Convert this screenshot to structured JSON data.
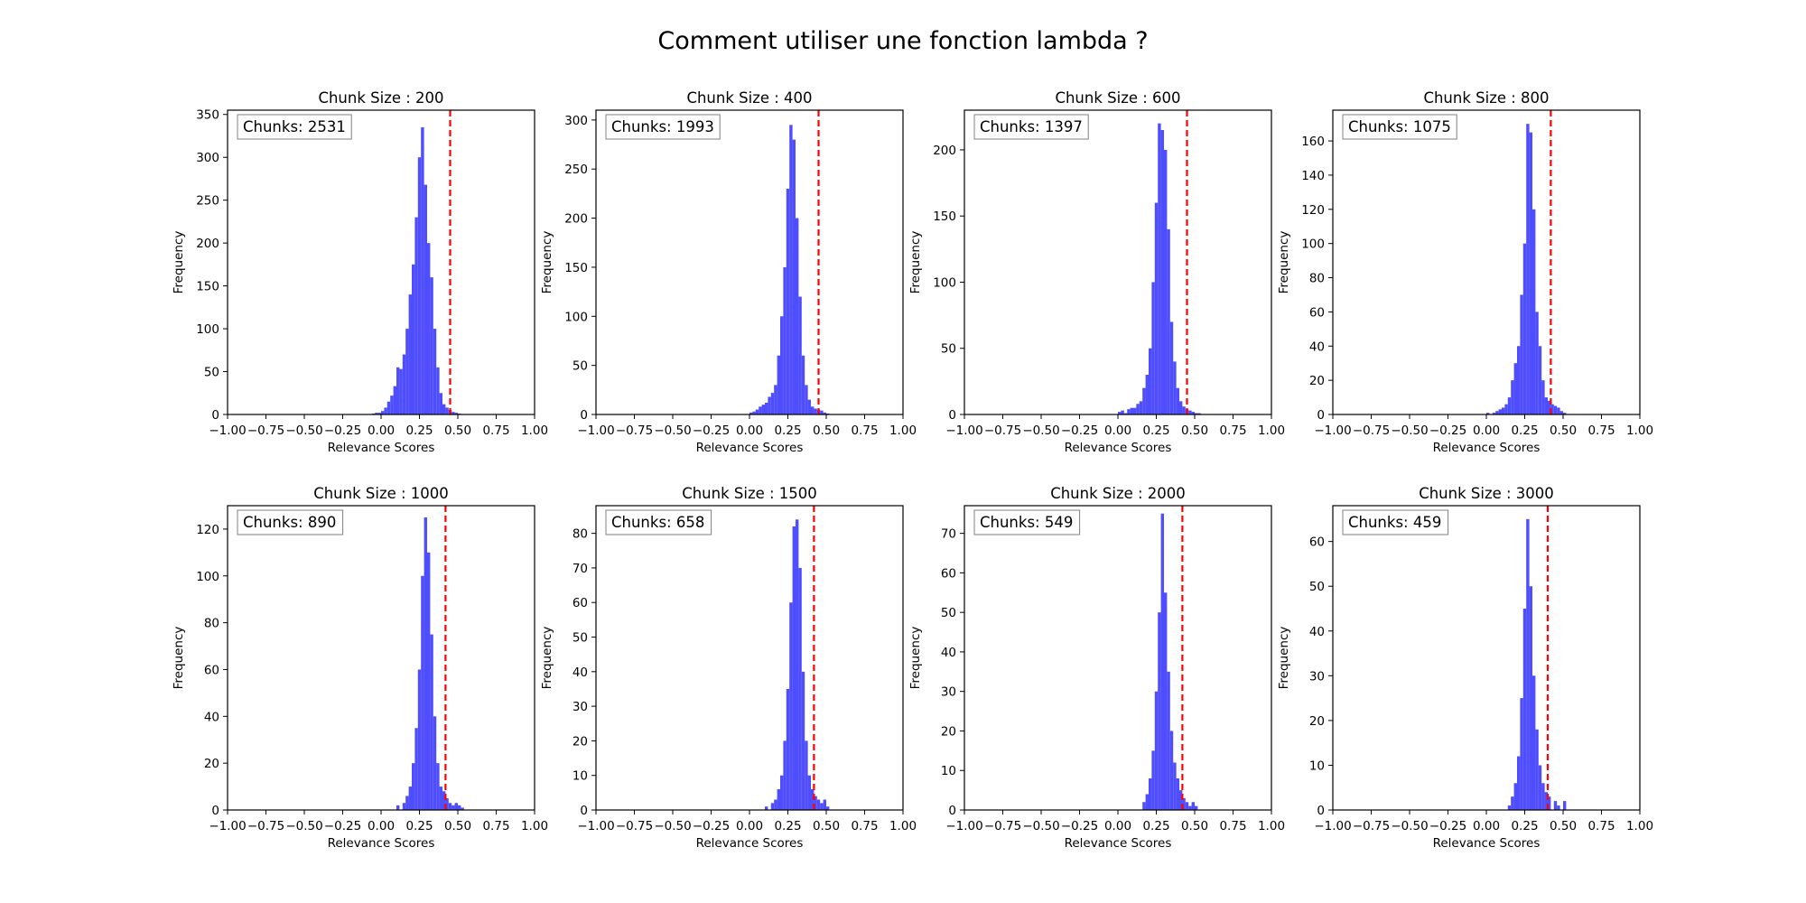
{
  "figure": {
    "title": "Comment utiliser une fonction lambda ?"
  },
  "style": {
    "bar_color": "#4444ff",
    "threshold_color": "#ff0000"
  },
  "chart_data": [
    {
      "type": "bar",
      "title": "Chunk Size : 200",
      "xlabel": "Relevance Scores",
      "ylabel": "Frequency",
      "annotation": "Chunks: 2531",
      "xlim": [
        -1.0,
        1.0
      ],
      "ylim": [
        0,
        355
      ],
      "xticks": [
        "−1.00",
        "−0.75",
        "−0.50",
        "−0.25",
        "0.00",
        "0.25",
        "0.50",
        "0.75",
        "1.00"
      ],
      "yticks": [
        0,
        50,
        100,
        150,
        200,
        250,
        300,
        350
      ],
      "threshold": 0.45,
      "bins": [
        -0.06,
        -0.04,
        -0.02,
        0.0,
        0.02,
        0.04,
        0.06,
        0.08,
        0.1,
        0.12,
        0.14,
        0.16,
        0.18,
        0.2,
        0.22,
        0.24,
        0.26,
        0.28,
        0.3,
        0.32,
        0.34,
        0.36,
        0.38,
        0.4,
        0.42,
        0.44,
        0.46,
        0.48,
        0.5
      ],
      "values": [
        1,
        2,
        2,
        4,
        8,
        15,
        22,
        33,
        55,
        53,
        70,
        100,
        140,
        175,
        230,
        300,
        335,
        268,
        200,
        160,
        100,
        55,
        25,
        12,
        8,
        5,
        3,
        2,
        1
      ]
    },
    {
      "type": "bar",
      "title": "Chunk Size : 400",
      "xlabel": "Relevance Scores",
      "ylabel": "Frequency",
      "annotation": "Chunks: 1993",
      "xlim": [
        -1.0,
        1.0
      ],
      "ylim": [
        0,
        310
      ],
      "xticks": [
        "−1.00",
        "−0.75",
        "−0.50",
        "−0.25",
        "0.00",
        "0.25",
        "0.50",
        "0.75",
        "1.00"
      ],
      "yticks": [
        0,
        50,
        100,
        150,
        200,
        250,
        300
      ],
      "threshold": 0.45,
      "bins": [
        0.0,
        0.02,
        0.04,
        0.06,
        0.08,
        0.1,
        0.12,
        0.14,
        0.16,
        0.18,
        0.2,
        0.22,
        0.24,
        0.26,
        0.28,
        0.3,
        0.32,
        0.34,
        0.36,
        0.38,
        0.4,
        0.42,
        0.44,
        0.46,
        0.48,
        0.5
      ],
      "values": [
        2,
        3,
        5,
        8,
        10,
        12,
        18,
        22,
        30,
        60,
        100,
        150,
        230,
        295,
        280,
        200,
        120,
        60,
        30,
        15,
        8,
        6,
        5,
        4,
        2,
        1
      ]
    },
    {
      "type": "bar",
      "title": "Chunk Size : 600",
      "xlabel": "Relevance Scores",
      "ylabel": "Frequency",
      "annotation": "Chunks: 1397",
      "xlim": [
        -1.0,
        1.0
      ],
      "ylim": [
        0,
        230
      ],
      "xticks": [
        "−1.00",
        "−0.75",
        "−0.50",
        "−0.25",
        "0.00",
        "0.25",
        "0.50",
        "0.75",
        "1.00"
      ],
      "yticks": [
        0,
        50,
        100,
        150,
        200
      ],
      "threshold": 0.45,
      "bins": [
        0.0,
        0.02,
        0.04,
        0.06,
        0.08,
        0.1,
        0.12,
        0.14,
        0.16,
        0.18,
        0.2,
        0.22,
        0.24,
        0.26,
        0.28,
        0.3,
        0.32,
        0.34,
        0.36,
        0.38,
        0.4,
        0.42,
        0.44,
        0.46,
        0.48,
        0.5,
        0.52
      ],
      "values": [
        2,
        3,
        1,
        4,
        5,
        5,
        8,
        10,
        20,
        30,
        50,
        100,
        160,
        220,
        215,
        200,
        140,
        70,
        40,
        20,
        10,
        6,
        4,
        3,
        2,
        1,
        1
      ]
    },
    {
      "type": "bar",
      "title": "Chunk Size : 800",
      "xlabel": "Relevance Scores",
      "ylabel": "Frequency",
      "annotation": "Chunks: 1075",
      "xlim": [
        -1.0,
        1.0
      ],
      "ylim": [
        0,
        178
      ],
      "xticks": [
        "−1.00",
        "−0.75",
        "−0.50",
        "−0.25",
        "0.00",
        "0.25",
        "0.50",
        "0.75",
        "1.00"
      ],
      "yticks": [
        0,
        20,
        40,
        60,
        80,
        100,
        120,
        140,
        160
      ],
      "threshold": 0.42,
      "bins": [
        0.0,
        0.04,
        0.06,
        0.08,
        0.1,
        0.12,
        0.14,
        0.16,
        0.18,
        0.2,
        0.22,
        0.24,
        0.26,
        0.28,
        0.3,
        0.32,
        0.34,
        0.36,
        0.38,
        0.4,
        0.42,
        0.44,
        0.46,
        0.48,
        0.5
      ],
      "values": [
        1,
        1,
        2,
        3,
        4,
        6,
        10,
        20,
        30,
        40,
        70,
        100,
        170,
        165,
        120,
        60,
        40,
        20,
        10,
        8,
        6,
        5,
        4,
        2,
        1
      ]
    },
    {
      "type": "bar",
      "title": "Chunk Size : 1000",
      "xlabel": "Relevance Scores",
      "ylabel": "Frequency",
      "annotation": "Chunks: 890",
      "xlim": [
        -1.0,
        1.0
      ],
      "ylim": [
        0,
        130
      ],
      "xticks": [
        "−1.00",
        "−0.75",
        "−0.50",
        "−0.25",
        "0.00",
        "0.25",
        "0.50",
        "0.75",
        "1.00"
      ],
      "yticks": [
        0,
        20,
        40,
        60,
        80,
        100,
        120
      ],
      "threshold": 0.42,
      "bins": [
        0.1,
        0.14,
        0.16,
        0.18,
        0.2,
        0.22,
        0.24,
        0.26,
        0.28,
        0.3,
        0.32,
        0.34,
        0.36,
        0.38,
        0.4,
        0.42,
        0.44,
        0.46,
        0.48,
        0.5,
        0.52
      ],
      "values": [
        2,
        3,
        6,
        10,
        20,
        35,
        60,
        100,
        125,
        110,
        75,
        40,
        20,
        10,
        8,
        5,
        3,
        2,
        3,
        2,
        1
      ]
    },
    {
      "type": "bar",
      "title": "Chunk Size : 1500",
      "xlabel": "Relevance Scores",
      "ylabel": "Frequency",
      "annotation": "Chunks: 658",
      "xlim": [
        -1.0,
        1.0
      ],
      "ylim": [
        0,
        88
      ],
      "xticks": [
        "−1.00",
        "−0.75",
        "−0.50",
        "−0.25",
        "0.00",
        "0.25",
        "0.50",
        "0.75",
        "1.00"
      ],
      "yticks": [
        0,
        10,
        20,
        30,
        40,
        50,
        60,
        70,
        80
      ],
      "threshold": 0.42,
      "bins": [
        0.1,
        0.14,
        0.16,
        0.18,
        0.2,
        0.22,
        0.24,
        0.26,
        0.28,
        0.3,
        0.32,
        0.34,
        0.36,
        0.38,
        0.4,
        0.42,
        0.44,
        0.46,
        0.48,
        0.5
      ],
      "values": [
        1,
        2,
        3,
        6,
        10,
        20,
        35,
        60,
        82,
        84,
        70,
        40,
        20,
        10,
        6,
        4,
        3,
        2,
        3,
        1
      ]
    },
    {
      "type": "bar",
      "title": "Chunk Size : 2000",
      "xlabel": "Relevance Scores",
      "ylabel": "Frequency",
      "annotation": "Chunks: 549",
      "xlim": [
        -1.0,
        1.0
      ],
      "ylim": [
        0,
        77
      ],
      "xticks": [
        "−1.00",
        "−0.75",
        "−0.50",
        "−0.25",
        "0.00",
        "0.25",
        "0.50",
        "0.75",
        "1.00"
      ],
      "yticks": [
        0,
        10,
        20,
        30,
        40,
        50,
        60,
        70
      ],
      "threshold": 0.42,
      "bins": [
        0.16,
        0.18,
        0.2,
        0.22,
        0.24,
        0.26,
        0.28,
        0.3,
        0.32,
        0.34,
        0.36,
        0.38,
        0.4,
        0.42,
        0.44,
        0.46,
        0.48,
        0.5
      ],
      "values": [
        2,
        4,
        8,
        15,
        30,
        50,
        75,
        55,
        35,
        20,
        12,
        8,
        5,
        3,
        2,
        1,
        2,
        1
      ]
    },
    {
      "type": "bar",
      "title": "Chunk Size : 3000",
      "xlabel": "Relevance Scores",
      "ylabel": "Frequency",
      "annotation": "Chunks: 459",
      "xlim": [
        -1.0,
        1.0
      ],
      "ylim": [
        0,
        68
      ],
      "xticks": [
        "−1.00",
        "−0.75",
        "−0.50",
        "−0.25",
        "0.00",
        "0.25",
        "0.50",
        "0.75",
        "1.00"
      ],
      "yticks": [
        0,
        10,
        20,
        30,
        40,
        50,
        60
      ],
      "threshold": 0.4,
      "bins": [
        0.14,
        0.16,
        0.18,
        0.2,
        0.22,
        0.24,
        0.26,
        0.28,
        0.3,
        0.32,
        0.34,
        0.36,
        0.38,
        0.4,
        0.44,
        0.46,
        0.5
      ],
      "values": [
        1,
        3,
        6,
        12,
        25,
        45,
        65,
        50,
        30,
        18,
        10,
        6,
        4,
        3,
        2,
        1,
        2
      ]
    }
  ]
}
